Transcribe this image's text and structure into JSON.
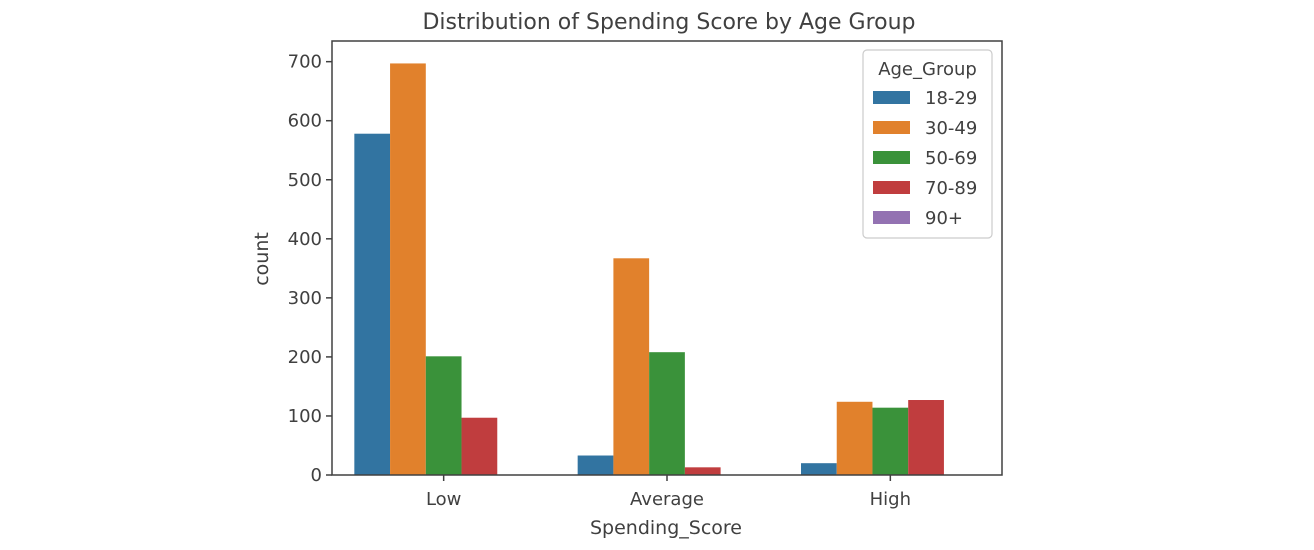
{
  "chart_data": {
    "type": "bar",
    "title": "Distribution of Spending Score by Age Group",
    "xlabel": "Spending_Score",
    "ylabel": "count",
    "categories": [
      "Low",
      "Average",
      "High"
    ],
    "yticks": [
      0,
      100,
      200,
      300,
      400,
      500,
      600,
      700
    ],
    "ylim": [
      0,
      735
    ],
    "grid": false,
    "legend": {
      "title": "Age_Group",
      "placement": "top-right"
    },
    "series": [
      {
        "name": "18-29",
        "color": "#3274a1",
        "values": [
          578,
          33,
          20
        ]
      },
      {
        "name": "30-49",
        "color": "#e1812c",
        "values": [
          697,
          367,
          124
        ]
      },
      {
        "name": "50-69",
        "color": "#3a923a",
        "values": [
          201,
          208,
          114
        ]
      },
      {
        "name": "70-89",
        "color": "#c03d3e",
        "values": [
          97,
          13,
          127
        ]
      },
      {
        "name": "90+",
        "color": "#9372b2",
        "values": [
          0,
          0,
          0
        ]
      }
    ]
  }
}
